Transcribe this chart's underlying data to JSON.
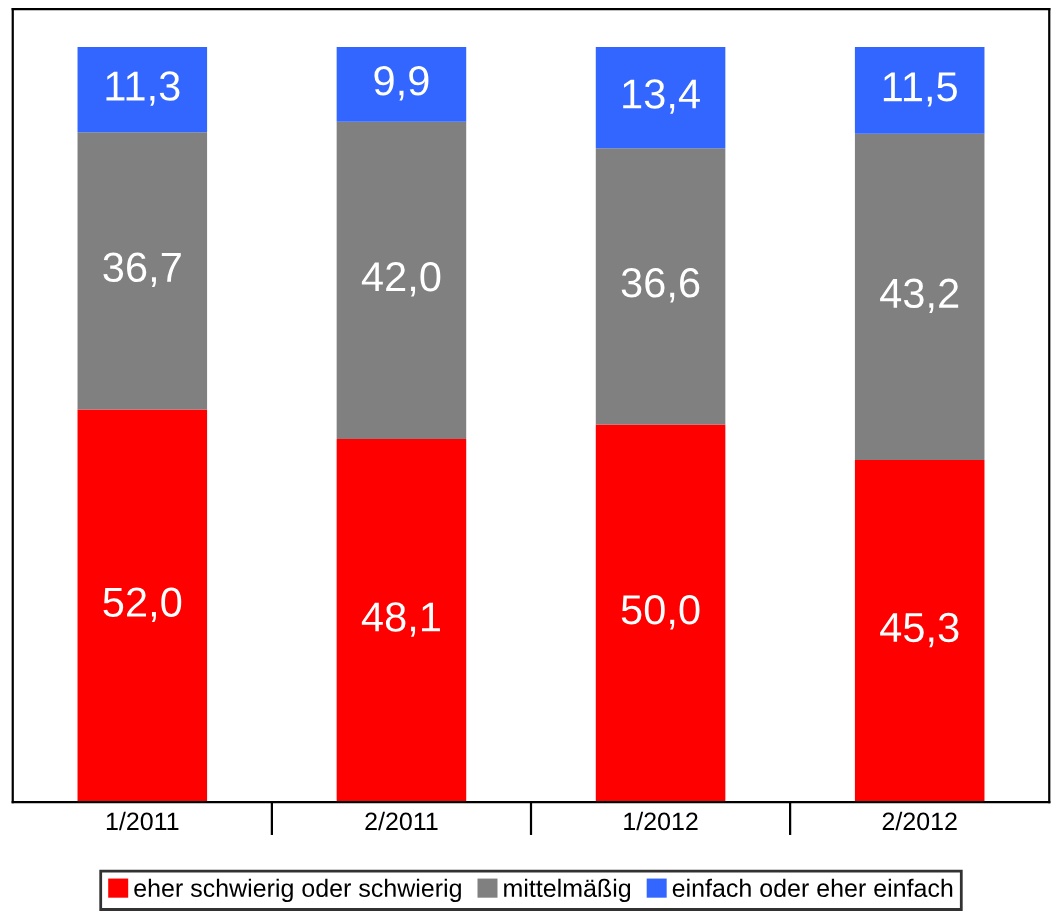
{
  "chart_data": {
    "type": "bar",
    "stacked": true,
    "categories": [
      "1/2011",
      "2/2011",
      "1/2012",
      "2/2012"
    ],
    "series": [
      {
        "name": "eher schwierig oder schwierig",
        "color": "#ff0000",
        "values": [
          52.0,
          48.1,
          50.0,
          45.3
        ],
        "value_labels": [
          "52,0",
          "48,1",
          "50,0",
          "45,3"
        ]
      },
      {
        "name": "mittelmäßig",
        "color": "#808080",
        "values": [
          36.7,
          42.0,
          36.6,
          43.2
        ],
        "value_labels": [
          "36,7",
          "42,0",
          "36,6",
          "43,2"
        ]
      },
      {
        "name": "einfach oder eher einfach",
        "color": "#3366ff",
        "values": [
          11.3,
          9.9,
          13.4,
          11.5
        ],
        "value_labels": [
          "11,3",
          "9,9",
          "13,4",
          "11,5"
        ]
      }
    ],
    "legend": "bottom",
    "grid": false,
    "tick_labels": "x"
  }
}
